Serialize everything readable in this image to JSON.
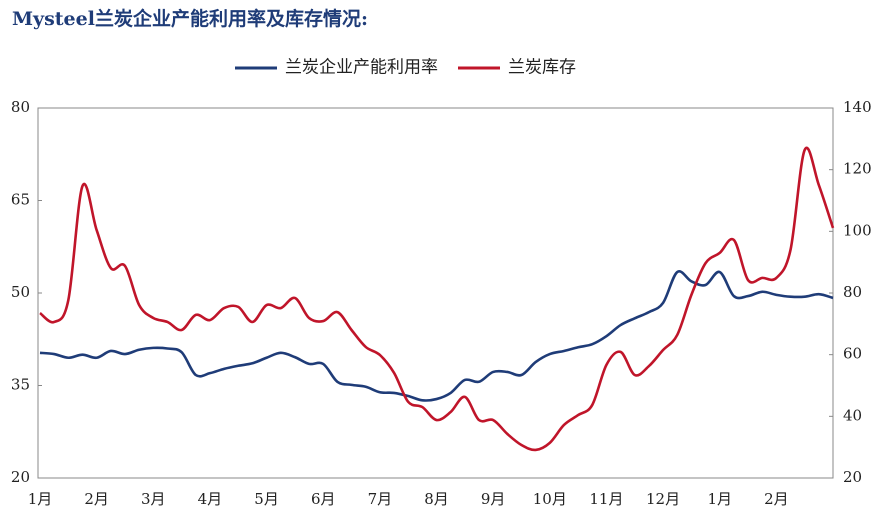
{
  "chart_data": {
    "type": "line",
    "title": "Mysteel兰炭企业产能利用率及库存情况:",
    "categories": [
      "1月",
      null,
      null,
      null,
      "2月",
      null,
      null,
      null,
      "3月",
      null,
      null,
      null,
      "4月",
      null,
      null,
      null,
      "5月",
      null,
      null,
      null,
      "6月",
      null,
      null,
      null,
      "7月",
      null,
      null,
      null,
      "8月",
      null,
      null,
      null,
      "9月",
      null,
      null,
      null,
      "10月",
      null,
      null,
      null,
      "11月",
      null,
      null,
      null,
      "12月",
      null,
      null,
      null,
      "1月",
      null,
      null,
      null,
      "2月",
      null,
      null,
      null,
      null
    ],
    "series": [
      {
        "name": "兰炭企业产能利用率",
        "color": "#1f3c78",
        "axis": "y",
        "values": [
          40.3,
          40.1,
          39.5,
          40,
          39.5,
          40.6,
          40.1,
          40.8,
          41.1,
          41,
          40.4,
          36.7,
          37,
          37.7,
          38.2,
          38.6,
          39.5,
          40.3,
          39.6,
          38.5,
          38.5,
          35.6,
          35.1,
          34.8,
          33.9,
          33.8,
          33.3,
          32.6,
          32.8,
          33.8,
          35.9,
          35.6,
          37.2,
          37.2,
          36.7,
          38.8,
          40.1,
          40.6,
          41.2,
          41.7,
          43,
          44.8,
          45.9,
          46.9,
          48.4,
          53.4,
          51.9,
          51.3,
          53.4,
          49.5,
          49.5,
          50.2,
          49.7,
          49.4,
          49.4,
          49.8,
          49.2
        ]
      },
      {
        "name": "兰炭库存",
        "color": "#c0152a",
        "axis": "y2",
        "values": [
          73.5,
          70.6,
          77.7,
          114.7,
          100.4,
          88.1,
          88.8,
          76.1,
          71.9,
          70.6,
          68,
          72.9,
          71.2,
          75.1,
          75.5,
          70.6,
          76.1,
          75.1,
          78.4,
          71.9,
          70.9,
          73.8,
          68,
          62.5,
          59.9,
          54.1,
          44.7,
          43,
          38.8,
          41.4,
          46.3,
          38.8,
          38.8,
          34.3,
          30.7,
          29.1,
          31.4,
          37.2,
          40.4,
          43.7,
          56.7,
          60.9,
          53.4,
          56.3,
          61.5,
          66.4,
          79.4,
          89.7,
          93,
          97.2,
          84.2,
          84.9,
          84.9,
          94,
          126.4,
          115,
          101.1
        ]
      }
    ],
    "ylim": [
      20,
      80
    ],
    "yticks": [
      20,
      35,
      50,
      65,
      80
    ],
    "y2lim": [
      20,
      140
    ],
    "y2ticks": [
      20,
      40,
      60,
      80,
      100,
      120,
      140
    ],
    "grid": false,
    "legend": "top"
  }
}
